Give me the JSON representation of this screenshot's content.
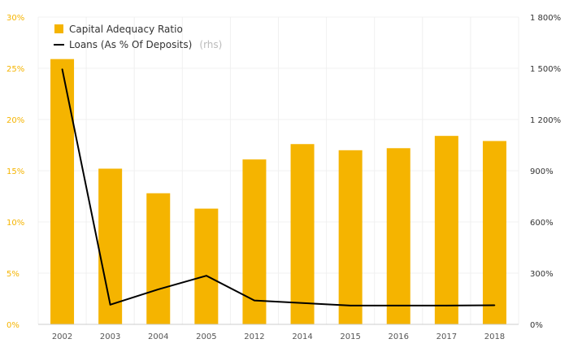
{
  "chart_data": {
    "type": "bar",
    "categories": [
      "2002",
      "2003",
      "2004",
      "2005",
      "2012",
      "2014",
      "2015",
      "2016",
      "2017",
      "2018"
    ],
    "series": [
      {
        "name": "Capital Adequacy Ratio",
        "type": "bar",
        "axis": "left",
        "values": [
          25.9,
          15.2,
          12.8,
          11.3,
          16.1,
          17.6,
          17.0,
          17.2,
          18.4,
          17.9
        ]
      },
      {
        "name": "Loans (As % Of Deposits)",
        "type": "line",
        "axis": "right",
        "values": [
          1495,
          115,
          205,
          285,
          140,
          125,
          110,
          110,
          110,
          112
        ]
      }
    ],
    "y_left": {
      "min": 0,
      "max": 30,
      "ticks": [
        0,
        5,
        10,
        15,
        20,
        25,
        30
      ],
      "tick_labels": [
        "0%",
        "5%",
        "10%",
        "15%",
        "20%",
        "25%",
        "30%"
      ]
    },
    "y_right": {
      "min": 0,
      "max": 1800,
      "ticks": [
        0,
        300,
        600,
        900,
        1200,
        1500,
        1800
      ],
      "tick_labels": [
        "0%",
        "300%",
        "600%",
        "900%",
        "1 200%",
        "1 500%",
        "1 800%"
      ]
    },
    "legend": {
      "position": "top-left",
      "items": [
        {
          "label": "Capital Adequacy Ratio",
          "suffix": ""
        },
        {
          "label": "Loans (As % Of Deposits)",
          "suffix": "(rhs)"
        }
      ]
    },
    "colors": {
      "bar": "#f5b400",
      "line": "#000000",
      "left_axis": "#f5b400",
      "grid": "#f0f0f0"
    }
  }
}
